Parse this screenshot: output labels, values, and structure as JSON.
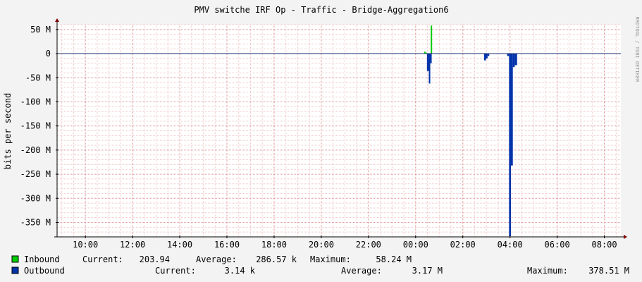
{
  "chart_data": {
    "type": "area",
    "title": "PMV switche IRF Op - Traffic - Bridge-Aggregation6",
    "ylabel": "bits per second",
    "watermark": "RRDTOOL / TOBI OETIKER",
    "x_ticks": [
      "10:00",
      "12:00",
      "14:00",
      "16:00",
      "18:00",
      "20:00",
      "22:00",
      "00:00",
      "02:00",
      "04:00",
      "06:00",
      "08:00"
    ],
    "x_tick_hours": [
      10,
      12,
      14,
      16,
      18,
      20,
      22,
      24,
      26,
      28,
      30,
      32
    ],
    "x_range_hours": [
      8.8,
      32.7
    ],
    "y_ticks": [
      {
        "v": 50,
        "label": "50 M"
      },
      {
        "v": 0,
        "label": "0"
      },
      {
        "v": -50,
        "label": "-50 M"
      },
      {
        "v": -100,
        "label": "-100 M"
      },
      {
        "v": -150,
        "label": "-150 M"
      },
      {
        "v": -200,
        "label": "-200 M"
      },
      {
        "v": -250,
        "label": "-250 M"
      },
      {
        "v": -300,
        "label": "-300 M"
      },
      {
        "v": -350,
        "label": "-350 M"
      }
    ],
    "ylim": [
      -380,
      60
    ],
    "grid": true,
    "series": [
      {
        "name": "Inbound",
        "color": "#00cc00",
        "stats": {
          "current": "203.94",
          "average": "286.57 k",
          "maximum": "58.24 M"
        },
        "spikes": [
          {
            "x0": 24.36,
            "x1": 24.42,
            "v": 4
          },
          {
            "x0": 24.42,
            "x1": 24.48,
            "v": 2
          },
          {
            "x0": 24.64,
            "x1": 24.7,
            "v": 58.24
          }
        ]
      },
      {
        "name": "Outbound",
        "color": "#0033aa",
        "stats": {
          "current": "3.14 k",
          "average": "3.17 M",
          "maximum": "378.51 M"
        },
        "spikes": [
          {
            "x0": 24.48,
            "x1": 24.56,
            "v": -36
          },
          {
            "x0": 24.56,
            "x1": 24.62,
            "v": -62
          },
          {
            "x0": 24.62,
            "x1": 24.68,
            "v": -20
          },
          {
            "x0": 26.9,
            "x1": 26.98,
            "v": -14
          },
          {
            "x0": 26.98,
            "x1": 27.05,
            "v": -10
          },
          {
            "x0": 27.05,
            "x1": 27.12,
            "v": -5
          },
          {
            "x0": 27.88,
            "x1": 27.96,
            "v": -5
          },
          {
            "x0": 27.96,
            "x1": 28.04,
            "v": -378.51
          },
          {
            "x0": 28.04,
            "x1": 28.12,
            "v": -232
          },
          {
            "x0": 28.12,
            "x1": 28.2,
            "v": -28
          },
          {
            "x0": 28.2,
            "x1": 28.3,
            "v": -24
          }
        ]
      }
    ]
  },
  "legend": {
    "current_label": "Current:",
    "average_label": "Average:",
    "maximum_label": "Maximum:"
  }
}
